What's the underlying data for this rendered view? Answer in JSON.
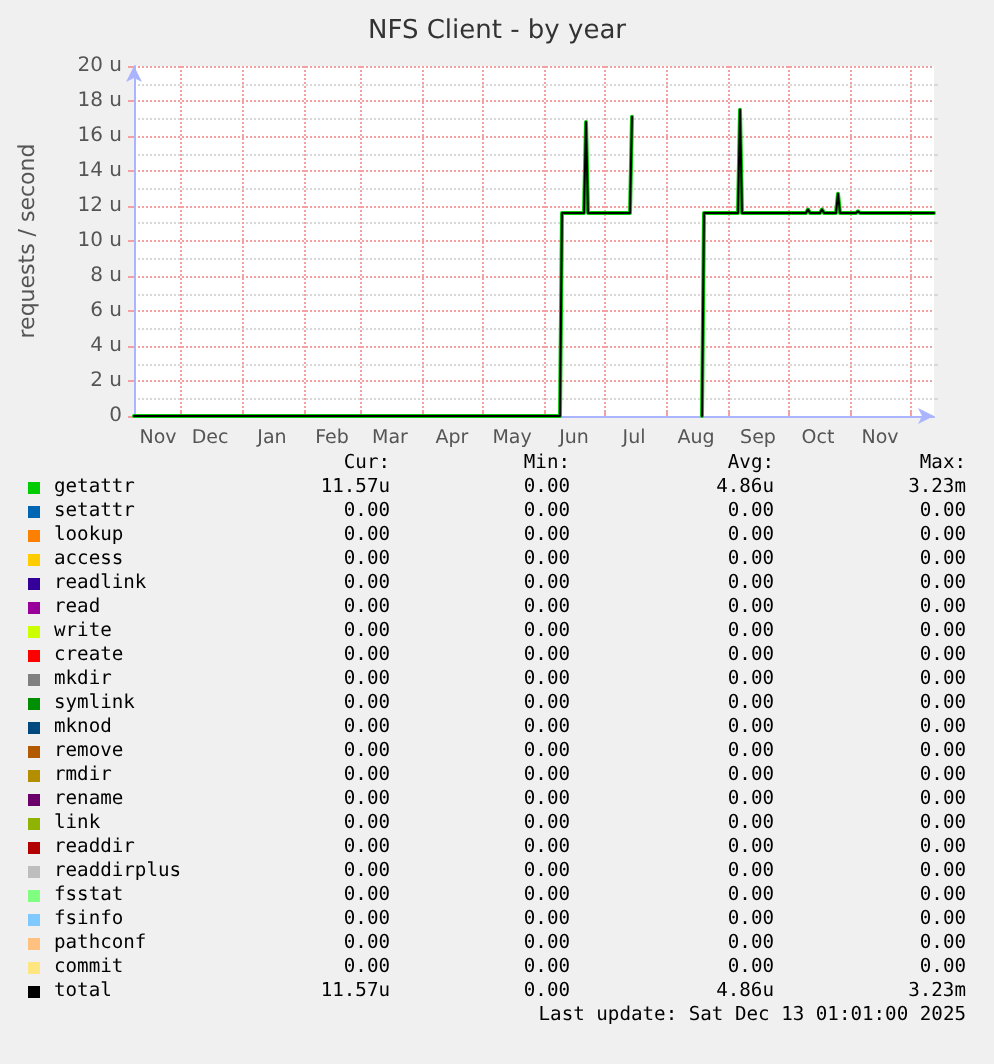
{
  "chart_data": {
    "type": "line",
    "title": "NFS Client - by year",
    "ylabel": "requests / second",
    "x": [
      "2024-11-08",
      "2025-06-09",
      "2025-06-10",
      "2025-06-21",
      "2025-06-22",
      "2025-06-23",
      "2025-07-14",
      "2025-07-15",
      "2025-07-16",
      "2025-08-19",
      "2025-08-20",
      "2025-09-06",
      "2025-09-07",
      "2025-09-08",
      "2025-10-10",
      "2025-10-11",
      "2025-10-12",
      "2025-10-17",
      "2025-10-18",
      "2025-10-19",
      "2025-10-25",
      "2025-10-26",
      "2025-10-27",
      "2025-11-04",
      "2025-11-05",
      "2025-11-06",
      "2025-12-13"
    ],
    "series": [
      {
        "name": "getattr",
        "color": "#00cc00",
        "values": [
          0,
          0,
          11.6,
          11.6,
          16.8,
          11.6,
          11.6,
          17.1,
          null,
          0,
          11.6,
          11.6,
          17.5,
          11.6,
          11.6,
          11.8,
          11.6,
          11.6,
          11.8,
          11.6,
          11.6,
          12.7,
          11.6,
          11.6,
          11.7,
          11.6,
          11.6
        ]
      },
      {
        "name": "setattr",
        "color": "#0066b3",
        "values": [
          null,
          null,
          null,
          null,
          null,
          null,
          null,
          null,
          null,
          null,
          null,
          null,
          null,
          null,
          null,
          null,
          null,
          null,
          null,
          null,
          null,
          null,
          null,
          null,
          null,
          null,
          null
        ]
      },
      {
        "name": "lookup",
        "color": "#ff8000",
        "values": [
          null,
          null,
          null,
          null,
          null,
          null,
          null,
          null,
          null,
          null,
          null,
          null,
          null,
          null,
          null,
          null,
          null,
          null,
          null,
          null,
          null,
          null,
          null,
          null,
          null,
          null,
          null
        ]
      },
      {
        "name": "access",
        "color": "#ffcc00",
        "values": [
          null,
          null,
          null,
          null,
          null,
          null,
          null,
          null,
          null,
          null,
          null,
          null,
          null,
          null,
          null,
          null,
          null,
          null,
          null,
          null,
          null,
          null,
          null,
          null,
          null,
          null,
          null
        ]
      },
      {
        "name": "readlink",
        "color": "#330099",
        "values": [
          null,
          null,
          null,
          null,
          null,
          null,
          null,
          null,
          null,
          null,
          null,
          null,
          null,
          null,
          null,
          null,
          null,
          null,
          null,
          null,
          null,
          null,
          null,
          null,
          null,
          null,
          null
        ]
      },
      {
        "name": "read",
        "color": "#990099",
        "values": [
          null,
          null,
          null,
          null,
          null,
          null,
          null,
          null,
          null,
          null,
          null,
          null,
          null,
          null,
          null,
          null,
          null,
          null,
          null,
          null,
          null,
          null,
          null,
          null,
          null,
          null,
          null
        ]
      },
      {
        "name": "write",
        "color": "#ccff00",
        "values": [
          null,
          null,
          null,
          null,
          null,
          null,
          null,
          null,
          null,
          null,
          null,
          null,
          null,
          null,
          null,
          null,
          null,
          null,
          null,
          null,
          null,
          null,
          null,
          null,
          null,
          null,
          null
        ]
      },
      {
        "name": "create",
        "color": "#ff0000",
        "values": [
          null,
          null,
          null,
          null,
          null,
          null,
          null,
          null,
          null,
          null,
          null,
          null,
          null,
          null,
          null,
          null,
          null,
          null,
          null,
          null,
          null,
          null,
          null,
          null,
          null,
          null,
          null
        ]
      },
      {
        "name": "mkdir",
        "color": "#808080",
        "values": [
          null,
          null,
          null,
          null,
          null,
          null,
          null,
          null,
          null,
          null,
          null,
          null,
          null,
          null,
          null,
          null,
          null,
          null,
          null,
          null,
          null,
          null,
          null,
          null,
          null,
          null,
          null
        ]
      },
      {
        "name": "symlink",
        "color": "#008f00",
        "values": [
          null,
          null,
          null,
          null,
          null,
          null,
          null,
          null,
          null,
          null,
          null,
          null,
          null,
          null,
          null,
          null,
          null,
          null,
          null,
          null,
          null,
          null,
          null,
          null,
          null,
          null,
          null
        ]
      },
      {
        "name": "mknod",
        "color": "#00487d",
        "values": [
          null,
          null,
          null,
          null,
          null,
          null,
          null,
          null,
          null,
          null,
          null,
          null,
          null,
          null,
          null,
          null,
          null,
          null,
          null,
          null,
          null,
          null,
          null,
          null,
          null,
          null,
          null
        ]
      },
      {
        "name": "remove",
        "color": "#b35a00",
        "values": [
          null,
          null,
          null,
          null,
          null,
          null,
          null,
          null,
          null,
          null,
          null,
          null,
          null,
          null,
          null,
          null,
          null,
          null,
          null,
          null,
          null,
          null,
          null,
          null,
          null,
          null,
          null
        ]
      },
      {
        "name": "rmdir",
        "color": "#b38f00",
        "values": [
          null,
          null,
          null,
          null,
          null,
          null,
          null,
          null,
          null,
          null,
          null,
          null,
          null,
          null,
          null,
          null,
          null,
          null,
          null,
          null,
          null,
          null,
          null,
          null,
          null,
          null,
          null
        ]
      },
      {
        "name": "rename",
        "color": "#6b006b",
        "values": [
          null,
          null,
          null,
          null,
          null,
          null,
          null,
          null,
          null,
          null,
          null,
          null,
          null,
          null,
          null,
          null,
          null,
          null,
          null,
          null,
          null,
          null,
          null,
          null,
          null,
          null,
          null
        ]
      },
      {
        "name": "link",
        "color": "#8fb300",
        "values": [
          null,
          null,
          null,
          null,
          null,
          null,
          null,
          null,
          null,
          null,
          null,
          null,
          null,
          null,
          null,
          null,
          null,
          null,
          null,
          null,
          null,
          null,
          null,
          null,
          null,
          null,
          null
        ]
      },
      {
        "name": "readdir",
        "color": "#b30000",
        "values": [
          null,
          null,
          null,
          null,
          null,
          null,
          null,
          null,
          null,
          null,
          null,
          null,
          null,
          null,
          null,
          null,
          null,
          null,
          null,
          null,
          null,
          null,
          null,
          null,
          null,
          null,
          null
        ]
      },
      {
        "name": "readdirplus",
        "color": "#bebebe",
        "values": [
          null,
          null,
          null,
          null,
          null,
          null,
          null,
          null,
          null,
          null,
          null,
          null,
          null,
          null,
          null,
          null,
          null,
          null,
          null,
          null,
          null,
          null,
          null,
          null,
          null,
          null,
          null
        ]
      },
      {
        "name": "fsstat",
        "color": "#80ff80",
        "values": [
          null,
          null,
          null,
          null,
          null,
          null,
          null,
          null,
          null,
          null,
          null,
          null,
          null,
          null,
          null,
          null,
          null,
          null,
          null,
          null,
          null,
          null,
          null,
          null,
          null,
          null,
          null
        ]
      },
      {
        "name": "fsinfo",
        "color": "#80c9ff",
        "values": [
          null,
          null,
          null,
          null,
          null,
          null,
          null,
          null,
          null,
          null,
          null,
          null,
          null,
          null,
          null,
          null,
          null,
          null,
          null,
          null,
          null,
          null,
          null,
          null,
          null,
          null,
          null
        ]
      },
      {
        "name": "pathconf",
        "color": "#ffc080",
        "values": [
          null,
          null,
          null,
          null,
          null,
          null,
          null,
          null,
          null,
          null,
          null,
          null,
          null,
          null,
          null,
          null,
          null,
          null,
          null,
          null,
          null,
          null,
          null,
          null,
          null,
          null,
          null
        ]
      },
      {
        "name": "commit",
        "color": "#ffe680",
        "values": [
          null,
          null,
          null,
          null,
          null,
          null,
          null,
          null,
          null,
          null,
          null,
          null,
          null,
          null,
          null,
          null,
          null,
          null,
          null,
          null,
          null,
          null,
          null,
          null,
          null,
          null,
          null
        ]
      },
      {
        "name": "total",
        "color": "#000000",
        "values": [
          0,
          0,
          11.6,
          11.6,
          16.8,
          11.6,
          11.6,
          17.1,
          null,
          0,
          11.6,
          11.6,
          17.5,
          11.6,
          11.6,
          11.8,
          11.6,
          11.6,
          11.8,
          11.6,
          11.6,
          12.7,
          11.6,
          11.6,
          11.7,
          11.6,
          11.6
        ]
      }
    ],
    "xlim": [
      "2024-11-08",
      "2025-12-13"
    ],
    "xticks": [
      {
        "value": "2024-11-20",
        "label": "Nov"
      },
      {
        "value": "2024-12-01",
        "label": null
      },
      {
        "value": "2024-12-16",
        "label": "Dec"
      },
      {
        "value": "2025-01-01",
        "label": null
      },
      {
        "value": "2025-01-16",
        "label": "Jan"
      },
      {
        "value": "2025-02-01",
        "label": null
      },
      {
        "value": "2025-02-15",
        "label": "Feb"
      },
      {
        "value": "2025-03-01",
        "label": null
      },
      {
        "value": "2025-03-16",
        "label": "Mar"
      },
      {
        "value": "2025-04-01",
        "label": null
      },
      {
        "value": "2025-04-16",
        "label": "Apr"
      },
      {
        "value": "2025-05-01",
        "label": null
      },
      {
        "value": "2025-05-16",
        "label": "May"
      },
      {
        "value": "2025-06-01",
        "label": null
      },
      {
        "value": "2025-06-16",
        "label": "Jun"
      },
      {
        "value": "2025-07-01",
        "label": null
      },
      {
        "value": "2025-07-16",
        "label": "Jul"
      },
      {
        "value": "2025-08-01",
        "label": null
      },
      {
        "value": "2025-08-16",
        "label": "Aug"
      },
      {
        "value": "2025-09-01",
        "label": null
      },
      {
        "value": "2025-09-16",
        "label": "Sep"
      },
      {
        "value": "2025-10-01",
        "label": null
      },
      {
        "value": "2025-10-16",
        "label": "Oct"
      },
      {
        "value": "2025-11-01",
        "label": null
      },
      {
        "value": "2025-11-16",
        "label": "Nov"
      },
      {
        "value": "2025-12-01",
        "label": null
      }
    ],
    "ylim": [
      0,
      20
    ],
    "yticks": [
      0,
      {
        "value": 1,
        "label": null
      },
      {
        "value": 2,
        "label": "2 u"
      },
      {
        "value": 3,
        "label": null
      },
      {
        "value": 4,
        "label": "4 u"
      },
      {
        "value": 5,
        "label": null
      },
      {
        "value": 6,
        "label": "6 u"
      },
      {
        "value": 7,
        "label": null
      },
      {
        "value": 8,
        "label": "8 u"
      },
      {
        "value": 9,
        "label": null
      },
      {
        "value": 10,
        "label": "10 u"
      },
      {
        "value": 11,
        "label": null
      },
      {
        "value": 12,
        "label": "12 u"
      },
      {
        "value": 13,
        "label": null
      },
      {
        "value": 14,
        "label": "14 u"
      },
      {
        "value": 15,
        "label": null
      },
      {
        "value": 16,
        "label": "16 u"
      },
      {
        "value": 17,
        "label": null
      },
      {
        "value": 18,
        "label": "18 u"
      },
      {
        "value": 19,
        "label": null
      },
      {
        "value": 20,
        "label": "20 u"
      }
    ],
    "grid": true,
    "legend": "bottom",
    "marker": "none",
    "line_style": "solid",
    "annotations": [
      "Cur:",
      "Min:",
      "Avg:",
      "Max:",
      "11.57u",
      "0.00",
      "4.86u",
      "3.23m",
      "0.00",
      "0.00",
      "0.00",
      "0.00",
      "0.00",
      "0.00",
      "0.00",
      "0.00",
      "0.00",
      "0.00",
      "0.00",
      "0.00",
      "0.00",
      "0.00",
      "0.00",
      "0.00",
      "0.00",
      "0.00",
      "0.00",
      "0.00",
      "0.00",
      "0.00",
      "0.00",
      "0.00",
      "0.00",
      "0.00",
      "0.00",
      "0.00",
      "0.00",
      "0.00",
      "0.00",
      "0.00",
      "0.00",
      "0.00",
      "0.00",
      "0.00",
      "0.00",
      "0.00",
      "0.00",
      "0.00",
      "0.00",
      "0.00",
      "0.00",
      "0.00",
      "0.00",
      "0.00",
      "0.00",
      "0.00",
      "0.00",
      "0.00",
      "0.00",
      "0.00",
      "0.00",
      "0.00",
      "0.00",
      "0.00",
      "0.00",
      "0.00",
      "0.00",
      "0.00",
      "0.00",
      "0.00",
      "0.00",
      "0.00",
      "0.00",
      "0.00",
      "0.00",
      "0.00",
      "0.00",
      "0.00",
      "0.00",
      "0.00",
      "0.00",
      "0.00",
      "0.00",
      "0.00",
      "0.00",
      "0.00",
      "0.00",
      "0.00",
      "11.57u",
      "0.00",
      "4.86u",
      "3.23m",
      "Last update: Sat Dec 13 01:01:00 2025"
    ]
  }
}
